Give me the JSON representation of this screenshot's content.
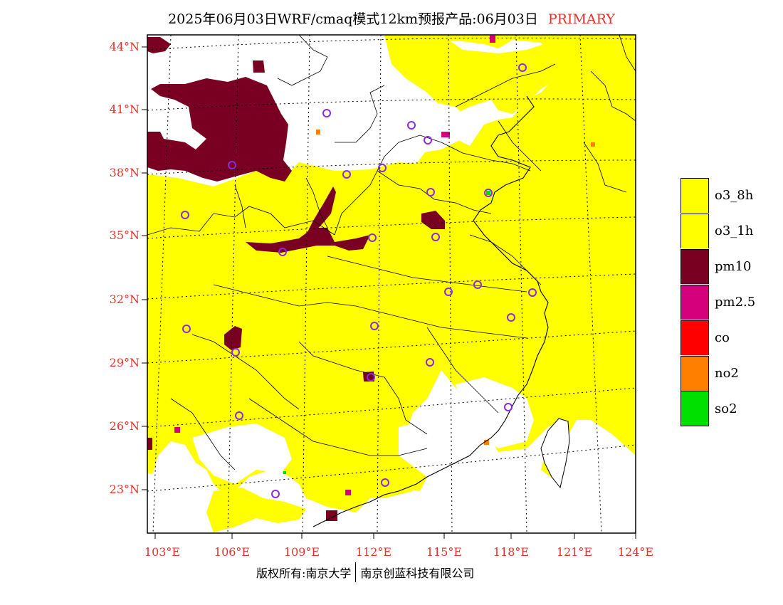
{
  "title": {
    "text": "2025年06月03日WRF/cmaq模式12km预报产品:06月03日",
    "tag": "PRIMARY"
  },
  "lat_labels": [
    "44°N",
    "41°N",
    "38°N",
    "35°N",
    "32°N",
    "29°N",
    "26°N",
    "23°N"
  ],
  "lon_labels": [
    "103°E",
    "106°E",
    "109°E",
    "112°E",
    "115°E",
    "118°E",
    "121°E",
    "124°E"
  ],
  "legend": [
    {
      "label": "o3_8h",
      "color": "#ffff00"
    },
    {
      "label": "o3_1h",
      "color": "#ffff00"
    },
    {
      "label": "pm10",
      "color": "#7a0022"
    },
    {
      "label": "pm2.5",
      "color": "#d4007c"
    },
    {
      "label": "co",
      "color": "#ff0000"
    },
    {
      "label": "no2",
      "color": "#ff7f00"
    },
    {
      "label": "so2",
      "color": "#00e000"
    }
  ],
  "footer": {
    "left": "版权所有:南京大学",
    "right": "南京创蓝科技有限公司"
  },
  "colors": {
    "ozone": "#ffff00",
    "pm10": "#7a0022",
    "pm25": "#d4007c",
    "no2": "#ff7f00",
    "so2": "#00e000",
    "city_marker": "#8a2be2",
    "label": "#e8302a"
  }
}
